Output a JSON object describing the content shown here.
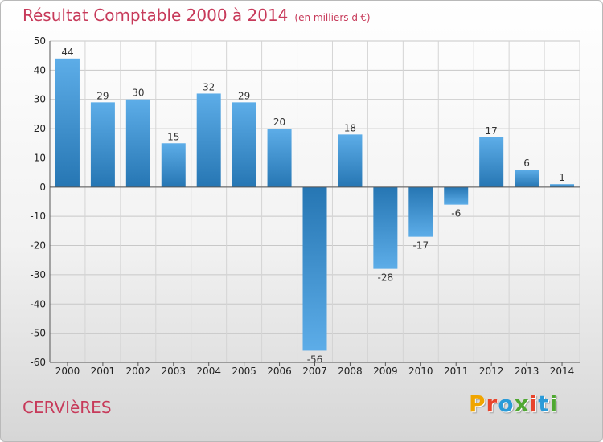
{
  "header": {
    "title": "Résultat Comptable 2000 à 2014",
    "subtitle": "(en milliers d'€)"
  },
  "footer": {
    "commune": "CERVIèRES",
    "logo_letters": [
      "P",
      "r",
      "o",
      "x",
      "i",
      "t",
      "i"
    ]
  },
  "colors": {
    "title": "#c73a5a",
    "bar_light": "#5dade8",
    "bar_dark": "#2676b3",
    "logo": [
      "#f0a500",
      "#e8452c",
      "#2a9bd8",
      "#4fa832",
      "#e8452c",
      "#2a9bd8",
      "#4fa832"
    ]
  },
  "chart_data": {
    "type": "bar",
    "title": "Résultat Comptable 2000 à 2014",
    "unit": "(en milliers d'€)",
    "categories": [
      "2000",
      "2001",
      "2002",
      "2003",
      "2004",
      "2005",
      "2006",
      "2007",
      "2008",
      "2009",
      "2010",
      "2011",
      "2012",
      "2013",
      "2014"
    ],
    "values": [
      44,
      29,
      30,
      15,
      32,
      29,
      20,
      -56,
      18,
      -28,
      -17,
      -6,
      17,
      6,
      1
    ],
    "ylim": [
      -60,
      50
    ],
    "yticks": [
      50,
      40,
      30,
      20,
      10,
      0,
      -10,
      -20,
      -30,
      -40,
      -50,
      -60
    ],
    "grid": true,
    "xlabel": "",
    "ylabel": ""
  }
}
